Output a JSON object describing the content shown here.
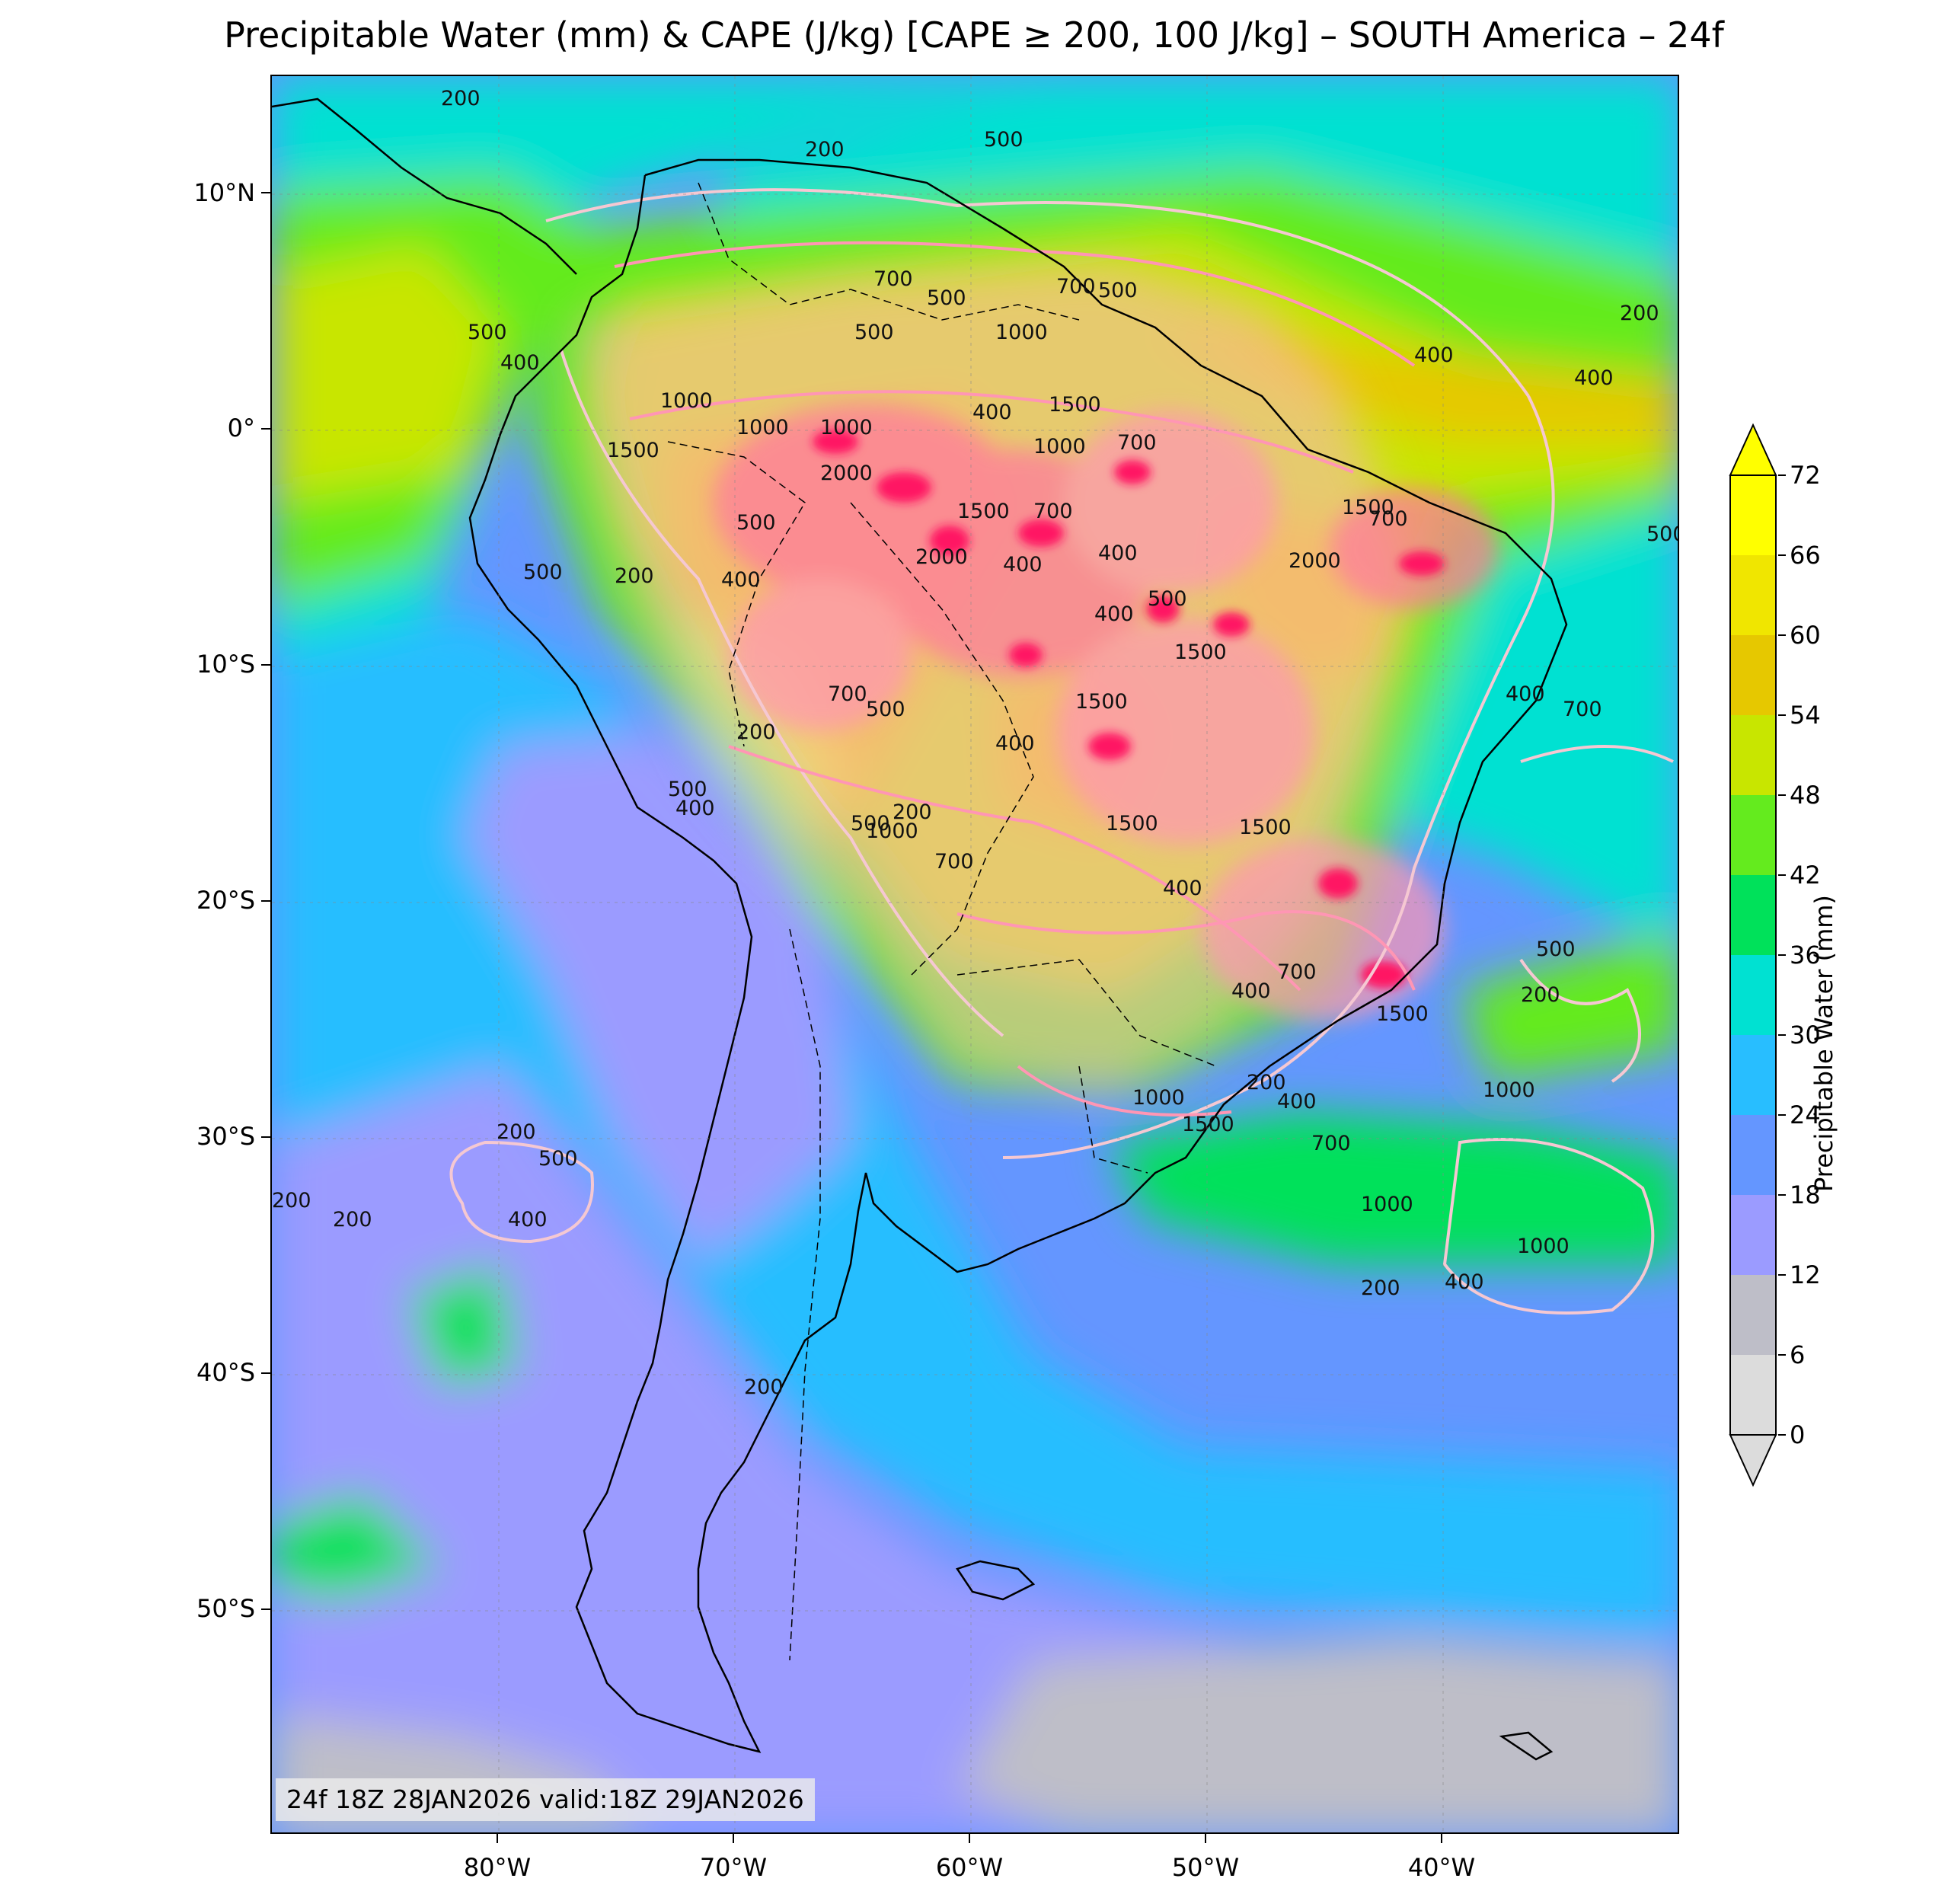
{
  "title": "Precipitable Water (mm) & CAPE (J/kg) [CAPE ≥ 200, 100 J/kg] – SOUTH America – 24f",
  "info_box": "24f 18Z 28JAN2026 valid:18Z 29JAN2026",
  "colorbar": {
    "label": "Precipitable Water (mm)",
    "ticks": [
      "0",
      "6",
      "12",
      "18",
      "24",
      "30",
      "36",
      "42",
      "48",
      "54",
      "60",
      "66",
      "72"
    ],
    "colors": [
      "#dcdcdc",
      "#bebec8",
      "#9b9bff",
      "#6496ff",
      "#28beff",
      "#00e1d2",
      "#00e15a",
      "#64eb1e",
      "#c8e600",
      "#e6c800",
      "#f0e600",
      "#ffff00"
    ],
    "extend": "both"
  },
  "axes": {
    "lat_labels": [
      "10°N",
      "0°",
      "10°S",
      "20°S",
      "30°S",
      "40°S",
      "50°S"
    ],
    "lon_labels": [
      "80°W",
      "70°W",
      "60°W",
      "50°W",
      "40°W"
    ]
  },
  "cape_contour_labels": [
    "200",
    "400",
    "500",
    "700",
    "1000",
    "1500",
    "2000"
  ],
  "colors": {
    "cape_low": "#f5c8d2",
    "cape_mid": "#ff96b4",
    "cape_high": "#ff1464",
    "coastline": "#000000"
  }
}
